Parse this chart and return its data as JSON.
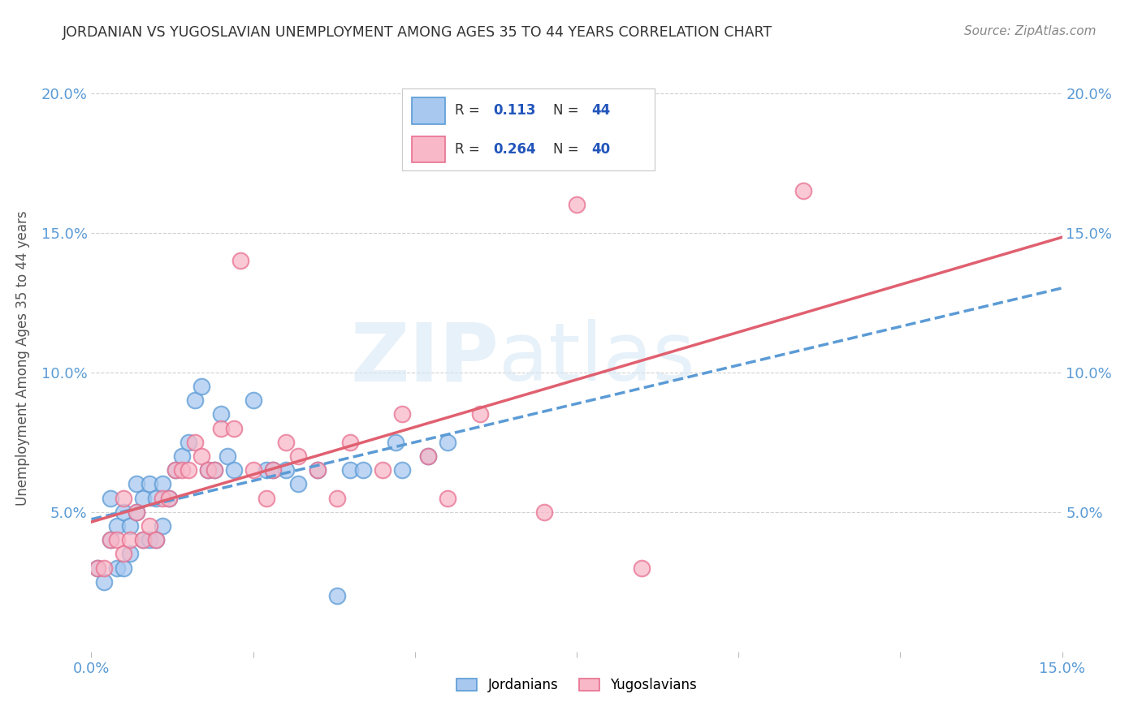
{
  "title": "JORDANIAN VS YUGOSLAVIAN UNEMPLOYMENT AMONG AGES 35 TO 44 YEARS CORRELATION CHART",
  "source": "Source: ZipAtlas.com",
  "ylabel": "Unemployment Among Ages 35 to 44 years",
  "xlim": [
    0.0,
    0.15
  ],
  "ylim": [
    0.0,
    0.21
  ],
  "x_ticks": [
    0.0,
    0.025,
    0.05,
    0.075,
    0.1,
    0.125,
    0.15
  ],
  "x_tick_labels": [
    "0.0%",
    "",
    "",
    "",
    "",
    "",
    "15.0%"
  ],
  "y_ticks": [
    0.0,
    0.05,
    0.1,
    0.15,
    0.2
  ],
  "y_tick_labels": [
    "",
    "5.0%",
    "10.0%",
    "15.0%",
    "20.0%"
  ],
  "jordan_color": "#a8c8f0",
  "yugoslav_color": "#f8b8c8",
  "jordan_edge_color": "#5b9bd5",
  "yugoslav_edge_color": "#e87090",
  "jordan_line_color": "#5b9bd5",
  "yugoslav_line_color": "#e06070",
  "jordan_R": 0.113,
  "jordan_N": 44,
  "yugoslav_R": 0.264,
  "yugoslav_N": 40,
  "background_color": "#ffffff",
  "jordan_x": [
    0.001,
    0.002,
    0.003,
    0.003,
    0.004,
    0.004,
    0.005,
    0.005,
    0.006,
    0.006,
    0.007,
    0.007,
    0.008,
    0.008,
    0.009,
    0.009,
    0.01,
    0.01,
    0.011,
    0.011,
    0.012,
    0.013,
    0.014,
    0.015,
    0.016,
    0.017,
    0.018,
    0.019,
    0.02,
    0.021,
    0.022,
    0.025,
    0.027,
    0.028,
    0.03,
    0.032,
    0.035,
    0.038,
    0.04,
    0.042,
    0.047,
    0.048,
    0.052,
    0.055
  ],
  "jordan_y": [
    0.03,
    0.025,
    0.04,
    0.055,
    0.03,
    0.045,
    0.03,
    0.05,
    0.035,
    0.045,
    0.05,
    0.06,
    0.04,
    0.055,
    0.04,
    0.06,
    0.04,
    0.055,
    0.045,
    0.06,
    0.055,
    0.065,
    0.07,
    0.075,
    0.09,
    0.095,
    0.065,
    0.065,
    0.085,
    0.07,
    0.065,
    0.09,
    0.065,
    0.065,
    0.065,
    0.06,
    0.065,
    0.02,
    0.065,
    0.065,
    0.075,
    0.065,
    0.07,
    0.075
  ],
  "yugoslav_x": [
    0.001,
    0.002,
    0.003,
    0.004,
    0.005,
    0.005,
    0.006,
    0.007,
    0.008,
    0.009,
    0.01,
    0.011,
    0.012,
    0.013,
    0.014,
    0.015,
    0.016,
    0.017,
    0.018,
    0.019,
    0.02,
    0.022,
    0.023,
    0.025,
    0.027,
    0.028,
    0.03,
    0.032,
    0.035,
    0.038,
    0.04,
    0.045,
    0.048,
    0.052,
    0.055,
    0.06,
    0.07,
    0.075,
    0.085,
    0.11
  ],
  "yugoslav_y": [
    0.03,
    0.03,
    0.04,
    0.04,
    0.035,
    0.055,
    0.04,
    0.05,
    0.04,
    0.045,
    0.04,
    0.055,
    0.055,
    0.065,
    0.065,
    0.065,
    0.075,
    0.07,
    0.065,
    0.065,
    0.08,
    0.08,
    0.14,
    0.065,
    0.055,
    0.065,
    0.075,
    0.07,
    0.065,
    0.055,
    0.075,
    0.065,
    0.085,
    0.07,
    0.055,
    0.085,
    0.05,
    0.16,
    0.03,
    0.165
  ]
}
